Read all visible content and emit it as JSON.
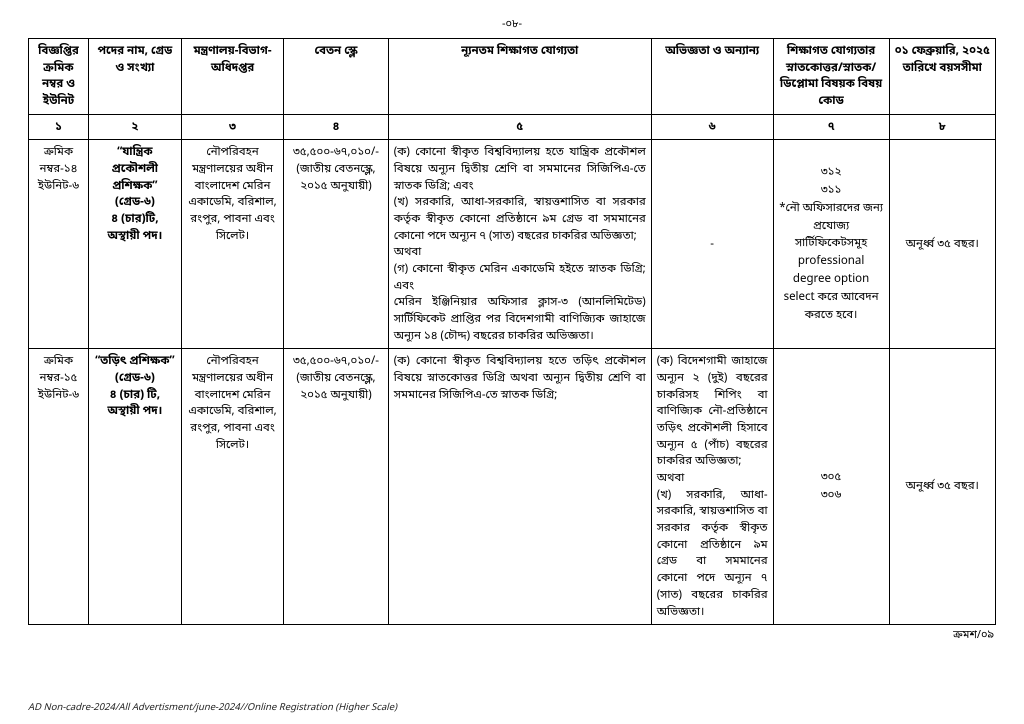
{
  "page_number_top": "-০৮-",
  "headers": [
    "বিজ্ঞপ্তির ক্রমিক নম্বর ও ইউনিট",
    "পদের নাম, গ্রেড ও সংখ্যা",
    "মন্ত্রণালয়-বিভাগ-অধিদপ্তর",
    "বেতন স্কেল",
    "ন্যূনতম শিক্ষাগত যোগ্যতা",
    "অভিজ্ঞতা ও অন্যান্য",
    "শিক্ষাগত যোগ্যতার স্নাতকোত্তর/স্নাতক/ ডিপ্লোমা বিষয়ক বিষয় কোড",
    "০১ ফেব্রুয়ারি, ২০২৫ তারিখে বয়সসীমা"
  ],
  "header_nums": [
    "১",
    "২",
    "৩",
    "৪",
    "৫",
    "৬",
    "৭",
    "৮"
  ],
  "rows": [
    {
      "serial": "ক্রমিক নম্বর-১৪ ইউনিট-৬",
      "post": "“যান্ত্রিক প্রকৌশলী প্রশিক্ষক”\n(গ্রেড-৬)\n৪ (চার)টি,\nঅস্থায়ী পদ।",
      "ministry": "নৌপরিবহন মন্ত্রণালয়ের অধীন বাংলাদেশ মেরিন একাডেমি, বরিশাল, রংপুর, পাবনা এবং সিলেট।",
      "scale": "৩৫,৫০০-৬৭,০১০/-\n(জাতীয় বেতনস্কেল, ২০১৫ অনুযায়ী)",
      "qual": "(ক) কোনো স্বীকৃত বিশ্ববিদ্যালয় হতে যান্ত্রিক প্রকৌশল বিষয়ে অন্যূন দ্বিতীয় শ্রেণি বা সমমানের সিজিপিএ-তে স্নাতক ডিগ্রি;    এবং\n(খ) সরকারি, আধা-সরকারি, স্বায়ত্তশাসিত বা সরকার কর্তৃক স্বীকৃত কোনো প্রতিষ্ঠানে ৯ম গ্রেড বা সমমানের কোনো পদে অন্যূন ৭ (সাত) বছরের চাকরির অভিজ্ঞতা;\nঅথবা\n(গ) কোনো স্বীকৃত মেরিন একাডেমি হইতে স্নাতক ডিগ্রি; এবং\n মেরিন ইঞ্জিনিয়ার অফিসার ক্লাস-৩ (আনলিমিটেড) সার্টিফিকেট প্রাপ্তির পর বিদেশগামী বাণিজ্যিক জাহাজে অন্যূন ১৪ (চৌদ্দ) বছরের চাকরির অভিজ্ঞতা।",
      "exp": "-",
      "code": "৩১২\n৩১১\n*নৌ অফিসারদের জন্য প্রযোজ্য সার্টিফিকেটসমূহ professional degree option select করে আবেদন করতে হবে।",
      "age": "অনূর্ধ্ব ৩৫ বছর।"
    },
    {
      "serial": "ক্রমিক নম্বর-১৫ ইউনিট-৬",
      "post": "“তড়িৎ প্রশিক্ষক”\n(গ্রেড-৬)\n৪ (চার) টি,\nঅস্থায়ী পদ।",
      "ministry": "নৌপরিবহন মন্ত্রণালয়ের অধীন বাংলাদেশ মেরিন একাডেমি, বরিশাল, রংপুর, পাবনা এবং সিলেট।",
      "scale": "৩৫,৫০০-৬৭,০১০/-\n(জাতীয় বেতনস্কেল, ২০১৫ অনুযায়ী)",
      "qual": "(ক) কোনো স্বীকৃত বিশ্ববিদ্যালয় হতে তড়িৎ প্রকৌশল বিষয়ে স্নাতকোত্তর ডিগ্রি অথবা অন্যূন দ্বিতীয় শ্রেণি বা সমমানের সিজিপিএ-তে স্নাতক ডিগ্রি;",
      "exp": "(ক) বিদেশগামী জাহাজে অন্যূন ২ (দুই) বছরের চাকরিসহ শিপিং বা বাণিজ্যিক নৌ-প্রতিষ্ঠানে তড়িৎ প্রকৌশলী হিসাবে অন্যূন ৫ (পাঁচ) বছরের চাকরির অভিজ্ঞতা;\nঅথবা\n(খ) সরকারি, আধা-সরকারি, স্বায়ত্তশাসিত বা সরকার কর্তৃক স্বীকৃত কোনো প্রতিষ্ঠানে ৯ম গ্রেড বা সমমানের কোনো পদে অন্যূন ৭ (সাত) বছরের চাকরির অভিজ্ঞতা।",
      "code": "৩০৫\n৩০৬",
      "age": "অনূর্ধ্ব ৩৫ বছর।"
    }
  ],
  "continuation": "ক্রমশ/০৯",
  "footer": "AD Non-cadre-2024/All Advertisment/june-2024//Online Registration (Higher Scale)"
}
